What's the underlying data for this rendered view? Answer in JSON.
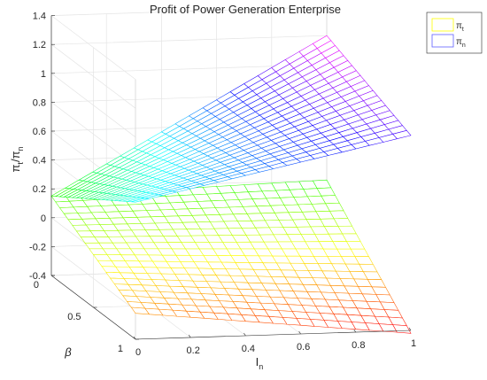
{
  "chart_data": {
    "type": "surface",
    "title": "Profit of Power Generation Enterprise",
    "x_axis": {
      "label": "I",
      "label_sub": "n",
      "range": [
        0,
        1
      ],
      "ticks": [
        "0",
        "0.2",
        "0.4",
        "0.6",
        "0.8",
        "1"
      ]
    },
    "y_axis": {
      "label": "β",
      "range": [
        0,
        1
      ],
      "ticks": [
        "0",
        "0.5",
        "1"
      ]
    },
    "z_axis": {
      "label_parts": [
        "π",
        "t",
        "/π",
        "n"
      ],
      "range": [
        -0.4,
        1.4
      ],
      "ticks": [
        "-0.4",
        "-0.2",
        "0",
        "0.2",
        "0.4",
        "0.6",
        "0.8",
        "1",
        "1.2",
        "1.4"
      ]
    },
    "grid": true,
    "legend": {
      "position": "top-right",
      "entries": [
        {
          "symbol": "π",
          "sub": "t",
          "color": "#ffff00"
        },
        {
          "symbol": "π",
          "sub": "n",
          "color": "#6060ff"
        }
      ]
    },
    "colormap": "hsv",
    "series": [
      {
        "key": "pi_t",
        "corners": {
          "I0_b0": 0.15,
          "I1_b0": 0.2,
          "I0_b1": -0.22,
          "I1_b1": -0.42
        },
        "x_samples": 21,
        "y_samples": 21
      },
      {
        "key": "pi_n",
        "corners": {
          "I0_b0": 0.15,
          "I1_b0": 1.2,
          "I0_b1": 0.55,
          "I1_b1": 0.95
        },
        "x_samples": 21,
        "y_samples": 21
      }
    ]
  }
}
